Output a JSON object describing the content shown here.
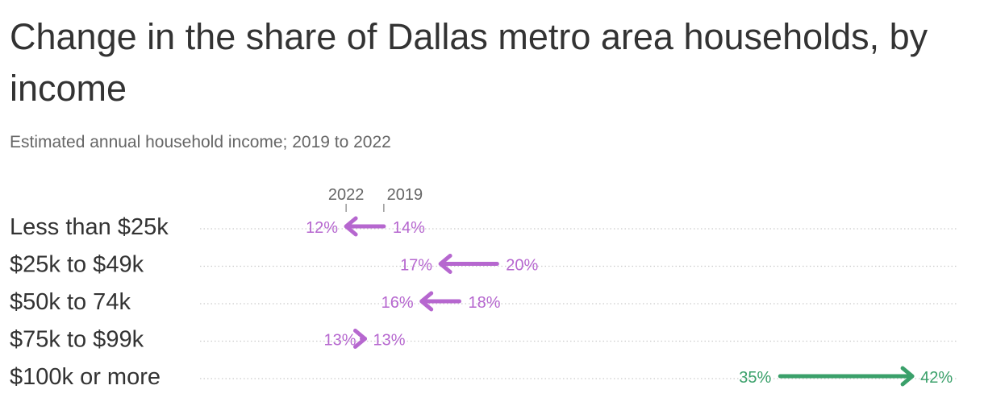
{
  "title": "Change in the share of Dallas metro area households, by income",
  "subtitle": "Estimated annual household income; 2019 to 2022",
  "colors": {
    "decrease": "#b667cf",
    "increase": "#3aa06a",
    "text": "#333333",
    "muted": "#666666",
    "grid": "#cccccc"
  },
  "chart_data": {
    "type": "arrow",
    "title": "Change in the share of Dallas metro area households, by income",
    "subtitle": "Estimated annual household income; 2019 to 2022",
    "header_labels": {
      "start": "2019",
      "end": "2022"
    },
    "value_unit": "%",
    "categories": [
      "Less than $25k",
      "$25k to $49k",
      "$50k to 74k",
      "$75k to $99k",
      "$100k or more"
    ],
    "start_values": [
      14,
      20,
      18,
      13,
      35
    ],
    "end_values": [
      12,
      17,
      16,
      13,
      42
    ],
    "xlim": [
      8,
      42
    ],
    "grid": false
  }
}
